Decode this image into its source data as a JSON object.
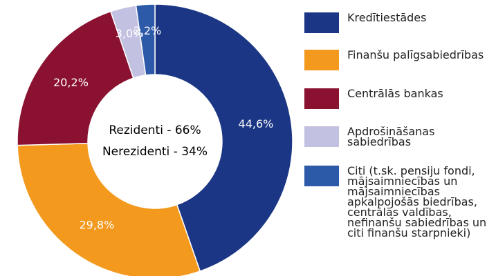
{
  "chart_data": {
    "type": "donut",
    "categories": [
      "Kredītiestādes",
      "Finanšu palīgsabiedrības",
      "Centrālās bankas",
      "Apdrošināšanas sabiedrības",
      "Citi (t.sk. pensiju fondi, mājsaimniecības un mājsaimniecības apkalpojošās biedrības, centrālās valdības, nefinanšu sabiedrības un citi finanšu starpnieki)"
    ],
    "values": [
      44.6,
      29.8,
      20.2,
      3.0,
      2.2
    ],
    "value_labels": [
      "44,6%",
      "29,8%",
      "20,2%",
      "3,0%",
      "2,2%"
    ],
    "colors": [
      "#1b3684",
      "#f39a1e",
      "#8a1230",
      "#c3c1e2",
      "#2d59a9"
    ],
    "annotations": [
      "Rezidenti - 66%",
      "Nerezidenti - 34%"
    ]
  }
}
